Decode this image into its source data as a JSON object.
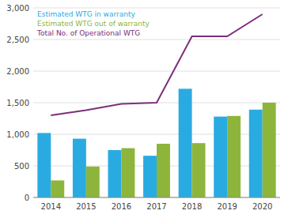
{
  "chart_data": {
    "type": "bar",
    "categories": [
      "2014",
      "2015",
      "2016",
      "2017",
      "2018",
      "2019",
      "2020"
    ],
    "series": [
      {
        "name": "Estimated WTG in warranty",
        "type": "bar",
        "color": "#29ABE2",
        "values": [
          1020,
          930,
          750,
          660,
          1720,
          1280,
          1390
        ]
      },
      {
        "name": "Estimated WTG out of warranty",
        "type": "bar",
        "color": "#8DB53B",
        "values": [
          270,
          490,
          780,
          850,
          860,
          1290,
          1500
        ]
      },
      {
        "name": "Total No. of Operational WTG",
        "type": "line",
        "color": "#7B2F7B",
        "values": [
          1300,
          1380,
          1480,
          1500,
          2550,
          2550,
          2900
        ]
      }
    ],
    "ylim": [
      0,
      3000
    ],
    "yticks": [
      0,
      500,
      {
        "value": 1000,
        "label": "1,000"
      },
      {
        "value": 1500,
        "label": "1,500"
      },
      {
        "value": 2000,
        "label": "2,000"
      },
      {
        "value": 2500,
        "label": "2,500"
      },
      {
        "value": 3000,
        "label": "3,000"
      }
    ],
    "grid": true,
    "legend": "upper left"
  }
}
